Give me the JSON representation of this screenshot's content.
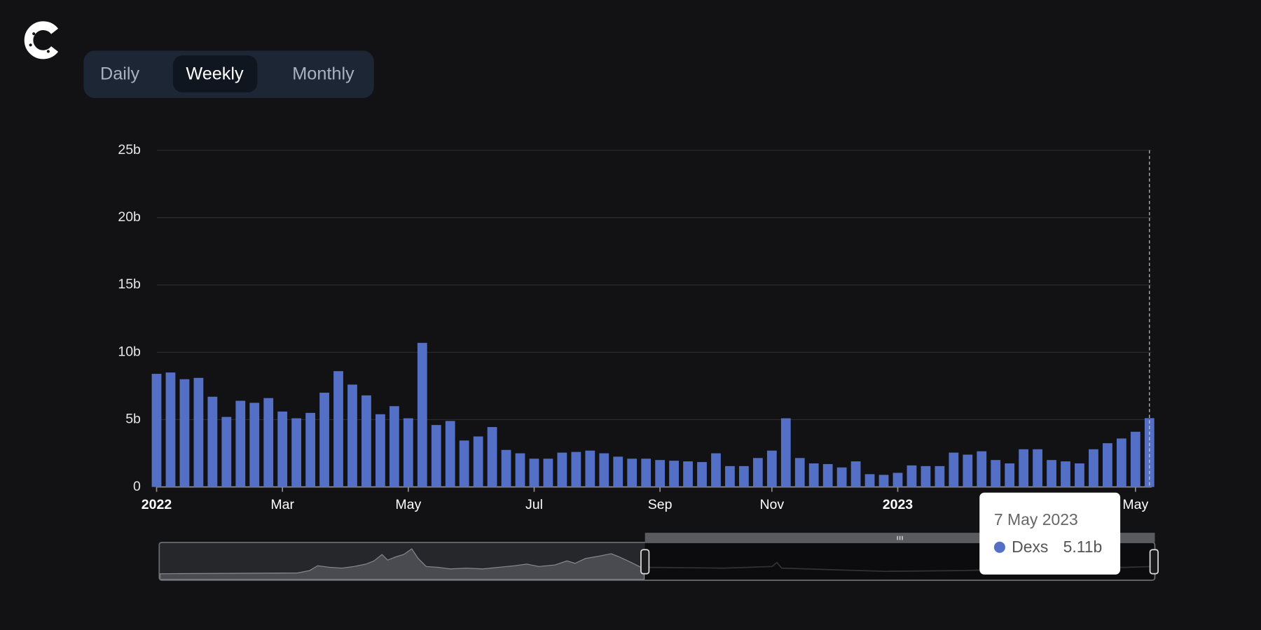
{
  "controls": {
    "options": [
      "Daily",
      "Weekly",
      "Monthly"
    ],
    "selected": "Weekly"
  },
  "chart_data": {
    "type": "bar",
    "categories": [
      "2022",
      null,
      null,
      null,
      null,
      null,
      null,
      null,
      null,
      "Mar",
      null,
      null,
      null,
      null,
      null,
      null,
      null,
      null,
      "May",
      null,
      null,
      null,
      null,
      null,
      null,
      null,
      null,
      "Jul",
      null,
      null,
      null,
      null,
      null,
      null,
      null,
      null,
      "Sep",
      null,
      null,
      null,
      null,
      null,
      null,
      null,
      "Nov",
      null,
      null,
      null,
      null,
      null,
      null,
      null,
      null,
      "2023",
      null,
      null,
      null,
      null,
      null,
      null,
      null,
      null,
      null,
      null,
      null,
      null,
      null,
      null,
      null,
      null,
      "May",
      null
    ],
    "series": [
      {
        "name": "Dexs",
        "color": "#5470c6",
        "values": [
          8.4,
          8.5,
          8.0,
          8.1,
          6.7,
          5.2,
          6.4,
          6.25,
          6.6,
          5.6,
          5.1,
          5.5,
          7.0,
          8.6,
          7.6,
          6.8,
          5.4,
          6.0,
          5.1,
          10.7,
          4.6,
          4.9,
          3.45,
          3.75,
          4.45,
          2.75,
          2.5,
          2.1,
          2.1,
          2.55,
          2.6,
          2.7,
          2.5,
          2.25,
          2.1,
          2.1,
          2.0,
          1.95,
          1.9,
          1.85,
          2.5,
          1.55,
          1.55,
          2.15,
          2.7,
          5.1,
          2.15,
          1.75,
          1.7,
          1.45,
          1.9,
          0.95,
          0.9,
          1.05,
          1.6,
          1.55,
          1.55,
          2.55,
          2.4,
          2.65,
          2.0,
          1.75,
          2.8,
          2.8,
          2.0,
          1.9,
          1.75,
          2.8,
          3.25,
          3.6,
          4.1,
          5.11
        ],
        "value_labels": [
          null,
          null,
          null,
          null,
          null,
          null,
          null,
          null,
          null,
          null,
          null,
          null,
          null,
          null,
          null,
          null,
          null,
          null,
          null,
          null,
          null,
          null,
          null,
          null,
          null,
          null,
          null,
          null,
          null,
          null,
          null,
          null,
          null,
          null,
          null,
          null,
          null,
          null,
          null,
          null,
          null,
          null,
          null,
          null,
          null,
          null,
          null,
          null,
          null,
          null,
          null,
          null,
          null,
          null,
          null,
          null,
          null,
          null,
          null,
          null,
          null,
          null,
          null,
          null,
          null,
          null,
          null,
          null,
          null,
          null,
          null,
          "5.11b"
        ]
      }
    ],
    "ylim": [
      0,
      25
    ],
    "yticks": [
      0,
      {
        "value": 5,
        "label": "5b"
      },
      {
        "value": 10,
        "label": "10b"
      },
      {
        "value": 15,
        "label": "15b"
      },
      {
        "value": 20,
        "label": "20b"
      },
      {
        "value": 25,
        "label": "25b"
      }
    ],
    "grid": true,
    "tooltip": {
      "title": "7 May 2023"
    }
  }
}
